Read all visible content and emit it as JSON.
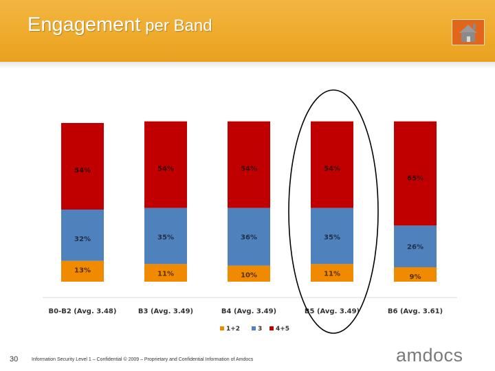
{
  "header": {
    "title_main": "Engagement",
    "title_rest": " per Band"
  },
  "footer": {
    "slide_number": "30",
    "text": "Information Security Level 1 – Confidential  © 2009 – Proprietary and Confidential Information of Amdocs",
    "logo": "amdocs"
  },
  "colors": {
    "header": "#eeaa2a",
    "home_button": "#e2651c",
    "series_low": "#f08a00",
    "series_mid": "#4f81bd",
    "series_high": "#c00000"
  },
  "chart_data": {
    "type": "bar",
    "stacked": true,
    "categories": [
      "B0-B2 (Avg. 3.48)",
      "B3 (Avg. 3.49)",
      "B4 (Avg. 3.49)",
      "B5 (Avg. 3.49)",
      "B6 (Avg. 3.61)"
    ],
    "series": [
      {
        "name": "1+2",
        "values": [
          13,
          11,
          10,
          11,
          9
        ],
        "labels": [
          "13%",
          "11%",
          "10%",
          "11%",
          "9%"
        ],
        "color": "#f08a00"
      },
      {
        "name": "3",
        "values": [
          32,
          35,
          36,
          35,
          26
        ],
        "labels": [
          "32%",
          "35%",
          "36%",
          "35%",
          "26%"
        ],
        "color": "#4f81bd"
      },
      {
        "name": "4+5",
        "values": [
          54,
          54,
          54,
          54,
          65
        ],
        "labels": [
          "54%",
          "54%",
          "54%",
          "54%",
          "65%"
        ],
        "color": "#c00000"
      }
    ],
    "ylim": [
      0,
      100
    ],
    "grid": false,
    "legend": "bottom",
    "highlight": "B5 (Avg. 3.49)"
  }
}
